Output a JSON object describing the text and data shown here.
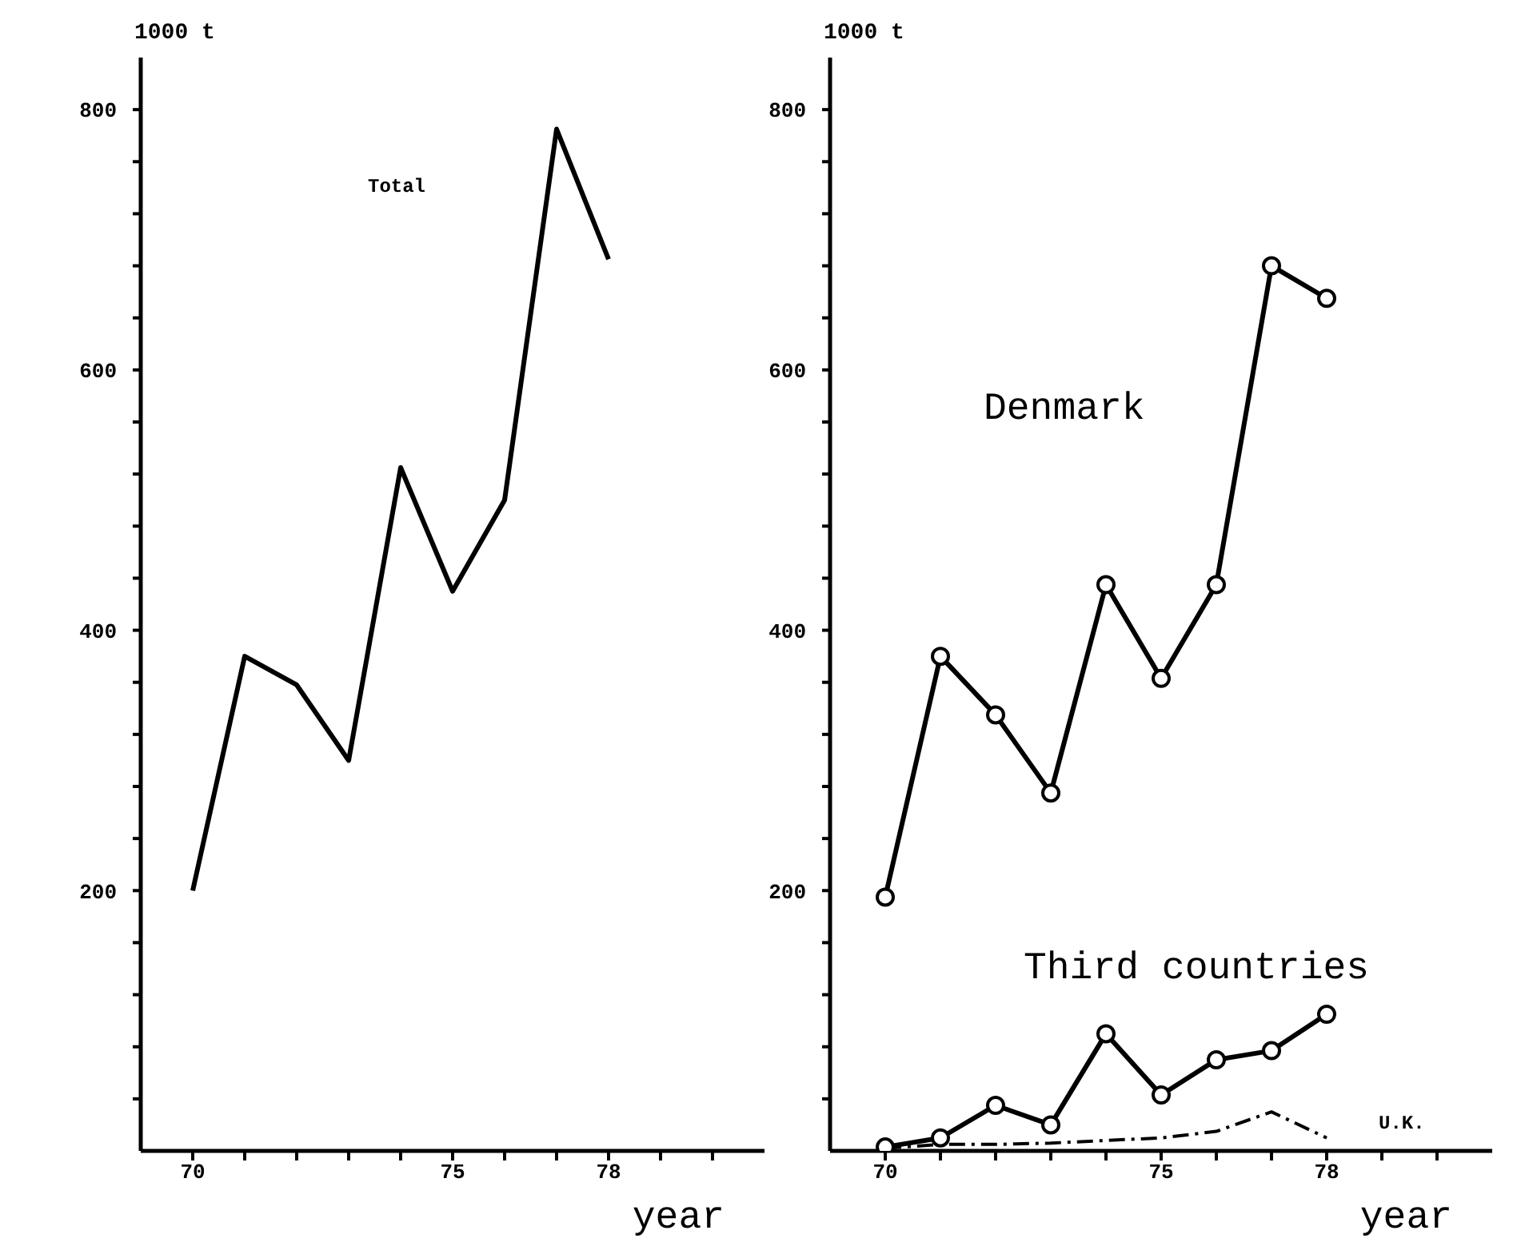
{
  "chart_data": [
    {
      "type": "line",
      "xlabel": "year",
      "ylabel": "1000 t",
      "x": [
        70,
        71,
        72,
        73,
        74,
        75,
        76,
        77,
        78
      ],
      "series": [
        {
          "name": "Total",
          "color": "#000000",
          "values": [
            200,
            380,
            358,
            300,
            525,
            430,
            500,
            785,
            685
          ]
        }
      ],
      "xlim": [
        69,
        81
      ],
      "xticks": [
        70,
        {
          "value": 71,
          "label": null
        },
        {
          "value": 72,
          "label": null
        },
        {
          "value": 73,
          "label": null
        },
        {
          "value": 74,
          "label": null
        },
        75,
        {
          "value": 76,
          "label": null
        },
        {
          "value": 77,
          "label": null
        },
        78,
        {
          "value": 79,
          "label": null
        },
        {
          "value": 80,
          "label": null
        }
      ],
      "ylim": [
        0,
        840
      ],
      "yticks": [
        {
          "value": 40,
          "label": null
        },
        {
          "value": 80,
          "label": null
        },
        {
          "value": 120,
          "label": null
        },
        {
          "value": 160,
          "label": null
        },
        200,
        {
          "value": 240,
          "label": null
        },
        {
          "value": 280,
          "label": null
        },
        {
          "value": 320,
          "label": null
        },
        {
          "value": 360,
          "label": null
        },
        400,
        {
          "value": 440,
          "label": null
        },
        {
          "value": 480,
          "label": null
        },
        {
          "value": 520,
          "label": null
        },
        {
          "value": 560,
          "label": null
        },
        600,
        {
          "value": 640,
          "label": null
        },
        {
          "value": 680,
          "label": null
        },
        {
          "value": 720,
          "label": null
        },
        {
          "value": 760,
          "label": null
        },
        800
      ],
      "marker": "none",
      "line_style": "solid"
    },
    {
      "type": "line",
      "xlabel": "year",
      "ylabel": "1000 t",
      "x": [
        70,
        71,
        72,
        73,
        74,
        75,
        76,
        77,
        78
      ],
      "series": [
        {
          "name": "Denmark",
          "color": "#000000",
          "values": [
            195,
            380,
            335,
            275,
            435,
            363,
            435,
            680,
            655
          ],
          "marker": "circle",
          "line_style": "solid"
        },
        {
          "name": "Third countries",
          "color": "#000000",
          "values": [
            3,
            10,
            35,
            20,
            90,
            43,
            70,
            77,
            105
          ],
          "marker": "circle",
          "line_style": "solid"
        },
        {
          "name": "U.K.",
          "color": "#000000",
          "values": [
            2,
            5,
            5,
            6,
            8,
            10,
            15,
            30,
            10
          ],
          "marker": "none",
          "line_style": "dashed"
        }
      ],
      "xlim": [
        69,
        81
      ],
      "xticks": [
        70,
        {
          "value": 71,
          "label": null
        },
        {
          "value": 72,
          "label": null
        },
        {
          "value": 73,
          "label": null
        },
        {
          "value": 74,
          "label": null
        },
        75,
        {
          "value": 76,
          "label": null
        },
        {
          "value": 77,
          "label": null
        },
        78,
        {
          "value": 79,
          "label": null
        },
        {
          "value": 80,
          "label": null
        }
      ],
      "ylim": [
        0,
        840
      ],
      "yticks": [
        {
          "value": 40,
          "label": null
        },
        {
          "value": 80,
          "label": null
        },
        {
          "value": 120,
          "label": null
        },
        {
          "value": 160,
          "label": null
        },
        200,
        {
          "value": 240,
          "label": null
        },
        {
          "value": 280,
          "label": null
        },
        {
          "value": 320,
          "label": null
        },
        {
          "value": 360,
          "label": null
        },
        400,
        {
          "value": 440,
          "label": null
        },
        {
          "value": 480,
          "label": null
        },
        {
          "value": 520,
          "label": null
        },
        {
          "value": 560,
          "label": null
        },
        600,
        {
          "value": 640,
          "label": null
        },
        {
          "value": 680,
          "label": null
        },
        {
          "value": 720,
          "label": null
        },
        {
          "value": 760,
          "label": null
        },
        800
      ]
    }
  ]
}
